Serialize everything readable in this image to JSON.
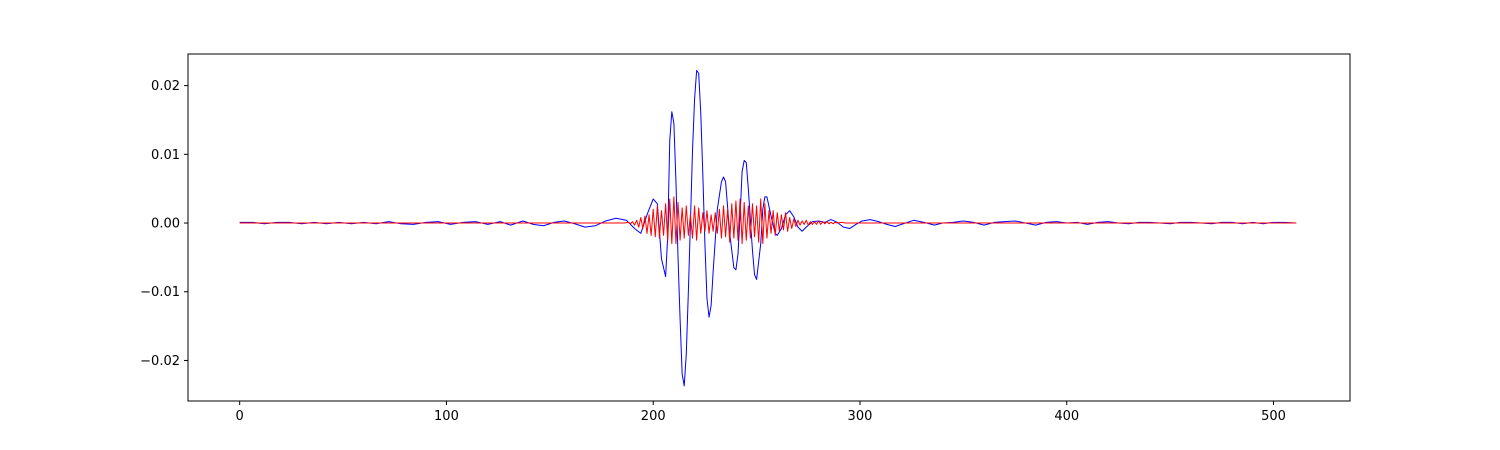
{
  "chart_data": {
    "type": "line",
    "title": "",
    "xlabel": "",
    "ylabel": "",
    "xlim": [
      -25,
      537
    ],
    "ylim": [
      -0.0259,
      0.0246
    ],
    "grid": false,
    "legend": "none",
    "xticks": [
      0,
      100,
      200,
      300,
      400,
      500
    ],
    "xtick_labels": [
      "0",
      "100",
      "200",
      "300",
      "400",
      "500"
    ],
    "yticks": [
      -0.02,
      -0.01,
      0.0,
      0.01,
      0.02
    ],
    "ytick_labels": [
      "−0.02",
      "−0.01",
      "0.00",
      "0.01",
      "0.02"
    ],
    "series": [
      {
        "color": "#0000ff",
        "points": [
          [
            0,
            0.0001
          ],
          [
            6,
            0.0001
          ],
          [
            12,
            -0.0001
          ],
          [
            18,
            0.0001
          ],
          [
            24,
            0.0001
          ],
          [
            30,
            -0.0001
          ],
          [
            36,
            0.0001
          ],
          [
            42,
            -0.0001
          ],
          [
            48,
            0.0001
          ],
          [
            54,
            -0.0001
          ],
          [
            60,
            0.0001
          ],
          [
            66,
            -0.0001
          ],
          [
            72,
            0.0002
          ],
          [
            78,
            -0.0001
          ],
          [
            84,
            -0.0002
          ],
          [
            90,
            0.0001
          ],
          [
            96,
            0.0002
          ],
          [
            102,
            -0.0002
          ],
          [
            108,
            0.0001
          ],
          [
            114,
            0.0002
          ],
          [
            120,
            -0.0002
          ],
          [
            126,
            0.0002
          ],
          [
            131,
            -0.0003
          ],
          [
            137,
            0.0003
          ],
          [
            142,
            -0.0002
          ],
          [
            147,
            -0.0004
          ],
          [
            152,
            0.0001
          ],
          [
            157,
            0.0003
          ],
          [
            162,
            -0.0001
          ],
          [
            167,
            -0.0006
          ],
          [
            172,
            -0.0004
          ],
          [
            177,
            0.0003
          ],
          [
            182,
            0.0007
          ],
          [
            187,
            0.0004
          ],
          [
            191,
            -0.0008
          ],
          [
            194,
            -0.0015
          ],
          [
            197,
            0.0012
          ],
          [
            200,
            0.0035
          ],
          [
            202,
            0.0028
          ],
          [
            204,
            -0.0052
          ],
          [
            206,
            -0.0078
          ],
          [
            207,
            -0.002
          ],
          [
            208,
            0.012
          ],
          [
            209,
            0.0162
          ],
          [
            210,
            0.0145
          ],
          [
            211,
            0.006
          ],
          [
            212,
            -0.005
          ],
          [
            213,
            -0.014
          ],
          [
            214,
            -0.022
          ],
          [
            215,
            -0.0237
          ],
          [
            216,
            -0.019
          ],
          [
            217,
            -0.01
          ],
          [
            218,
            0.0
          ],
          [
            219,
            0.0105
          ],
          [
            220,
            0.018
          ],
          [
            221,
            0.0222
          ],
          [
            222,
            0.0218
          ],
          [
            223,
            0.016
          ],
          [
            224,
            0.007
          ],
          [
            225,
            -0.003
          ],
          [
            226,
            -0.011
          ],
          [
            227,
            -0.0137
          ],
          [
            228,
            -0.012
          ],
          [
            229,
            -0.007
          ],
          [
            231,
            0.002
          ],
          [
            233,
            0.006
          ],
          [
            234,
            0.0067
          ],
          [
            235,
            0.006
          ],
          [
            237,
            -0.0015
          ],
          [
            239,
            -0.0065
          ],
          [
            240,
            -0.0068
          ],
          [
            241,
            -0.0045
          ],
          [
            242,
            0.001
          ],
          [
            243,
            0.0075
          ],
          [
            244,
            0.0091
          ],
          [
            245,
            0.0088
          ],
          [
            246,
            0.005
          ],
          [
            248,
            -0.004
          ],
          [
            249,
            -0.0075
          ],
          [
            250,
            -0.0082
          ],
          [
            252,
            -0.003
          ],
          [
            253,
            0.002
          ],
          [
            254,
            0.0038
          ],
          [
            255,
            0.0038
          ],
          [
            257,
            0.001
          ],
          [
            259,
            -0.0015
          ],
          [
            260,
            -0.0018
          ],
          [
            262,
            -0.0008
          ],
          [
            264,
            0.0012
          ],
          [
            266,
            0.0018
          ],
          [
            268,
            0.0009
          ],
          [
            270,
            -0.0006
          ],
          [
            272,
            -0.0012
          ],
          [
            274,
            -0.0006
          ],
          [
            277,
            0.0002
          ],
          [
            280,
            0.0003
          ],
          [
            283,
            0.0001
          ],
          [
            286,
            0.0005
          ],
          [
            289,
            0.0001
          ],
          [
            292,
            -0.0006
          ],
          [
            295,
            -0.0008
          ],
          [
            298,
            -0.0002
          ],
          [
            301,
            0.0003
          ],
          [
            305,
            0.0005
          ],
          [
            309,
            0.0002
          ],
          [
            313,
            -0.0002
          ],
          [
            317,
            -0.0005
          ],
          [
            322,
            0.0
          ],
          [
            326,
            0.0004
          ],
          [
            331,
            0.0001
          ],
          [
            336,
            -0.0003
          ],
          [
            340,
            0.0
          ],
          [
            345,
            0.0001
          ],
          [
            350,
            0.0003
          ],
          [
            355,
            0.0001
          ],
          [
            360,
            -0.0003
          ],
          [
            365,
            0.0001
          ],
          [
            370,
            0.0002
          ],
          [
            375,
            0.0003
          ],
          [
            380,
            0.0
          ],
          [
            385,
            -0.0003
          ],
          [
            390,
            0.0001
          ],
          [
            395,
            0.0002
          ],
          [
            400,
            0.0
          ],
          [
            405,
            0.0001
          ],
          [
            410,
            -0.0002
          ],
          [
            415,
            0.0001
          ],
          [
            420,
            0.0002
          ],
          [
            425,
            0.0
          ],
          [
            430,
            -0.0001
          ],
          [
            435,
            0.0001
          ],
          [
            440,
            0.0001
          ],
          [
            445,
            0.0
          ],
          [
            450,
            -0.0001
          ],
          [
            455,
            0.0001
          ],
          [
            460,
            0.0001
          ],
          [
            465,
            0.0
          ],
          [
            470,
            -0.0001
          ],
          [
            475,
            0.0001
          ],
          [
            480,
            0.0001
          ],
          [
            485,
            -0.0001
          ],
          [
            490,
            0.0001
          ],
          [
            495,
            -0.0001
          ],
          [
            500,
            0.0001
          ],
          [
            505,
            0.0001
          ],
          [
            511,
            0.0
          ]
        ]
      },
      {
        "color": "#ff0000",
        "points": [
          [
            0,
            0.0
          ],
          [
            10,
            0.0
          ],
          [
            20,
            0.0
          ],
          [
            30,
            0.0
          ],
          [
            40,
            0.0
          ],
          [
            50,
            0.0
          ],
          [
            60,
            0.0
          ],
          [
            70,
            0.0
          ],
          [
            80,
            0.0
          ],
          [
            90,
            0.0
          ],
          [
            100,
            0.0
          ],
          [
            110,
            0.0
          ],
          [
            120,
            0.0
          ],
          [
            130,
            0.0
          ],
          [
            140,
            0.0
          ],
          [
            150,
            0.0
          ],
          [
            160,
            0.0
          ],
          [
            170,
            0.0
          ],
          [
            180,
            0.0
          ],
          [
            186,
            0.0
          ],
          [
            188,
            0.0001
          ],
          [
            189,
            -0.0001
          ],
          [
            190,
            0.0002
          ],
          [
            191,
            -0.0003
          ],
          [
            192,
            0.0004
          ],
          [
            193,
            -0.0006
          ],
          [
            194,
            0.0008
          ],
          [
            195,
            -0.0008
          ],
          [
            196,
            0.001
          ],
          [
            197,
            -0.0015
          ],
          [
            198,
            0.0012
          ],
          [
            199,
            -0.0018
          ],
          [
            200,
            0.002
          ],
          [
            201,
            -0.002
          ],
          [
            202,
            0.0025
          ],
          [
            203,
            -0.0022
          ],
          [
            204,
            0.0018
          ],
          [
            205,
            -0.0018
          ],
          [
            206,
            0.0028
          ],
          [
            207,
            -0.0025
          ],
          [
            208,
            0.0035
          ],
          [
            209,
            -0.003
          ],
          [
            210,
            0.0038
          ],
          [
            211,
            -0.003
          ],
          [
            212,
            0.003
          ],
          [
            213,
            -0.0025
          ],
          [
            214,
            0.0022
          ],
          [
            215,
            -0.0022
          ],
          [
            216,
            0.0025
          ],
          [
            217,
            -0.0018
          ],
          [
            218,
            0.0012
          ],
          [
            219,
            -0.0022
          ],
          [
            220,
            0.0025
          ],
          [
            221,
            -0.0025
          ],
          [
            222,
            0.0022
          ],
          [
            223,
            -0.0015
          ],
          [
            224,
            0.0015
          ],
          [
            225,
            -0.0012
          ],
          [
            226,
            0.0018
          ],
          [
            227,
            -0.0015
          ],
          [
            228,
            0.0012
          ],
          [
            229,
            -0.0012
          ],
          [
            230,
            0.0015
          ],
          [
            231,
            -0.0015
          ],
          [
            232,
            0.002
          ],
          [
            233,
            -0.0022
          ],
          [
            234,
            0.0025
          ],
          [
            235,
            -0.002
          ],
          [
            236,
            0.002
          ],
          [
            237,
            -0.0028
          ],
          [
            238,
            0.0028
          ],
          [
            239,
            -0.0022
          ],
          [
            240,
            0.0032
          ],
          [
            241,
            -0.0025
          ],
          [
            242,
            0.0035
          ],
          [
            243,
            -0.003
          ],
          [
            244,
            0.003
          ],
          [
            245,
            -0.0025
          ],
          [
            246,
            0.0025
          ],
          [
            247,
            -0.0022
          ],
          [
            248,
            0.0028
          ],
          [
            249,
            -0.002
          ],
          [
            250,
            0.0025
          ],
          [
            251,
            -0.0028
          ],
          [
            252,
            0.0035
          ],
          [
            253,
            -0.003
          ],
          [
            254,
            0.0028
          ],
          [
            255,
            -0.0022
          ],
          [
            256,
            0.0018
          ],
          [
            257,
            -0.0015
          ],
          [
            258,
            0.0018
          ],
          [
            259,
            -0.0018
          ],
          [
            260,
            0.0015
          ],
          [
            261,
            -0.0012
          ],
          [
            262,
            0.0012
          ],
          [
            263,
            -0.001
          ],
          [
            264,
            0.0015
          ],
          [
            265,
            -0.0012
          ],
          [
            266,
            0.0008
          ],
          [
            267,
            -0.0008
          ],
          [
            268,
            0.0006
          ],
          [
            269,
            -0.0005
          ],
          [
            270,
            0.0004
          ],
          [
            271,
            -0.0003
          ],
          [
            272,
            0.0003
          ],
          [
            273,
            -0.0002
          ],
          [
            274,
            0.0004
          ],
          [
            275,
            -0.0003
          ],
          [
            276,
            0.0002
          ],
          [
            277,
            -0.0002
          ],
          [
            278,
            0.0002
          ],
          [
            279,
            -0.0002
          ],
          [
            280,
            0.0003
          ],
          [
            281,
            -0.0002
          ],
          [
            282,
            0.0002
          ],
          [
            283,
            -0.0001
          ],
          [
            284,
            0.0002
          ],
          [
            285,
            -0.0001
          ],
          [
            286,
            0.0001
          ],
          [
            287,
            -0.0001
          ],
          [
            288,
            0.0001
          ],
          [
            289,
            0.0
          ],
          [
            291,
            0.0001
          ],
          [
            293,
            0.0
          ],
          [
            295,
            0.0
          ],
          [
            300,
            0.0
          ],
          [
            310,
            0.0
          ],
          [
            320,
            0.0
          ],
          [
            330,
            0.0
          ],
          [
            340,
            0.0
          ],
          [
            350,
            0.0
          ],
          [
            360,
            0.0
          ],
          [
            370,
            0.0
          ],
          [
            380,
            0.0
          ],
          [
            390,
            0.0
          ],
          [
            400,
            0.0
          ],
          [
            410,
            0.0
          ],
          [
            420,
            0.0
          ],
          [
            430,
            0.0
          ],
          [
            440,
            0.0
          ],
          [
            450,
            0.0
          ],
          [
            460,
            0.0
          ],
          [
            470,
            0.0
          ],
          [
            480,
            0.0
          ],
          [
            490,
            0.0
          ],
          [
            500,
            0.0
          ],
          [
            511,
            0.0
          ]
        ]
      }
    ]
  }
}
